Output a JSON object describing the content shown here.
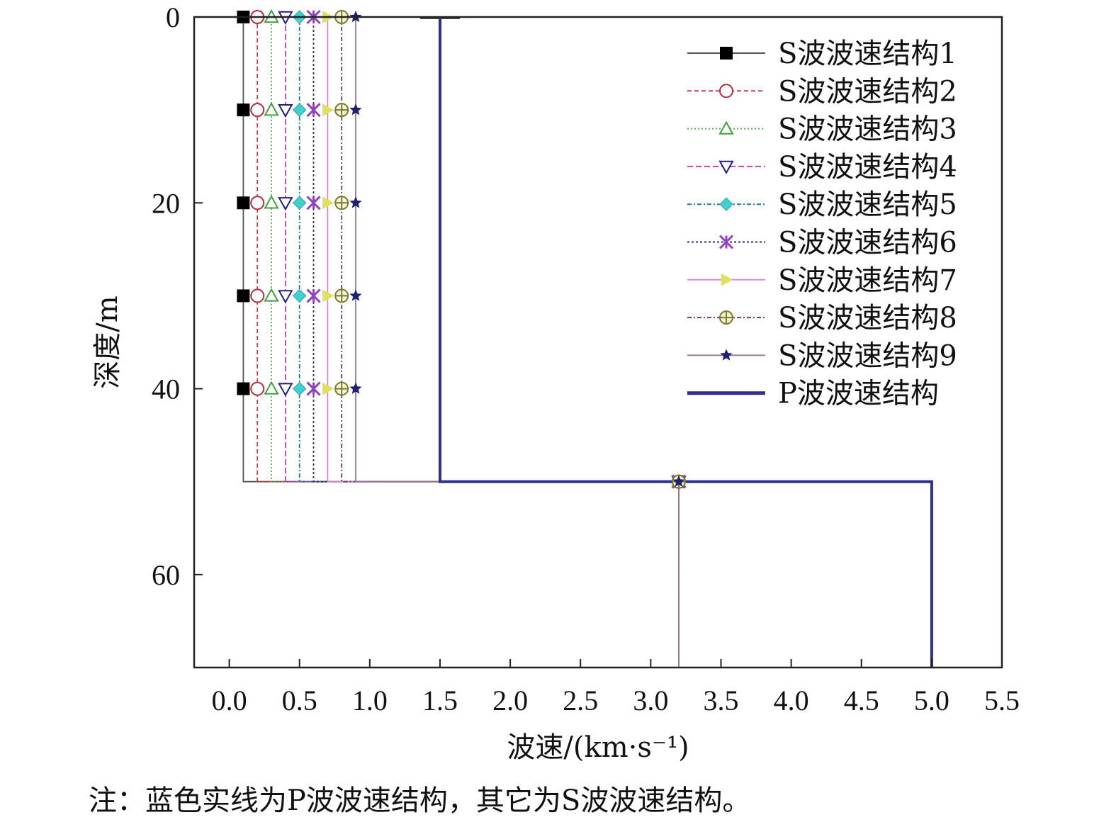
{
  "chart_data": {
    "type": "line",
    "xlabel": "波速/(km·s⁻¹)",
    "ylabel": "深度/m",
    "xlim": [
      -0.25,
      5.5
    ],
    "ylim": [
      0,
      70
    ],
    "y_inverted": true,
    "x_ticks": [
      0.0,
      0.5,
      1.0,
      1.5,
      2.0,
      2.5,
      3.0,
      3.5,
      4.0,
      4.5,
      5.0,
      5.5
    ],
    "x_tick_labels": [
      "0.0",
      "0.5",
      "1.0",
      "1.5",
      "2.0",
      "2.5",
      "3.0",
      "3.5",
      "4.0",
      "4.5",
      "5.0",
      "5.5"
    ],
    "y_ticks": [
      0,
      20,
      40,
      60
    ],
    "y_tick_labels": [
      "0",
      "20",
      "40",
      "60"
    ],
    "grid": false,
    "legend_position": "top-right",
    "marker_depths": [
      0,
      10,
      20,
      30,
      40
    ],
    "series": [
      {
        "name": "S波波速结构1",
        "color": "#555555",
        "dash": "",
        "marker": "square-filled",
        "marker_color": "#000000",
        "points": [
          [
            0.1,
            0
          ],
          [
            0.1,
            50
          ],
          [
            3.2,
            50
          ],
          [
            3.2,
            70
          ]
        ]
      },
      {
        "name": "S波波速结构2",
        "color": "#c04050",
        "dash": "6,4",
        "marker": "circle-open",
        "marker_color": "#b03040",
        "points": [
          [
            0.2,
            0
          ],
          [
            0.2,
            50
          ],
          [
            3.2,
            50
          ],
          [
            3.2,
            70
          ]
        ]
      },
      {
        "name": "S波波速结构3",
        "color": "#50b050",
        "dash": "2,3",
        "marker": "triangle-up-open",
        "marker_color": "#40a040",
        "points": [
          [
            0.3,
            0
          ],
          [
            0.3,
            50
          ],
          [
            3.2,
            50
          ],
          [
            3.2,
            70
          ]
        ]
      },
      {
        "name": "S波波速结构4",
        "color": "#c040c0",
        "dash": "8,4",
        "marker": "triangle-down-open",
        "marker_color": "#202080",
        "points": [
          [
            0.4,
            0
          ],
          [
            0.4,
            50
          ],
          [
            3.2,
            50
          ],
          [
            3.2,
            70
          ]
        ]
      },
      {
        "name": "S波波速结构5",
        "color": "#208080",
        "dash": "6,3,2,3",
        "marker": "diamond-filled",
        "marker_color": "#40d0d0",
        "points": [
          [
            0.5,
            0
          ],
          [
            0.5,
            50
          ],
          [
            3.2,
            50
          ],
          [
            3.2,
            70
          ]
        ]
      },
      {
        "name": "S波波速结构6",
        "color": "#303060",
        "dash": "3,3",
        "marker": "x-star",
        "marker_color": "#9040c0",
        "points": [
          [
            0.6,
            0
          ],
          [
            0.6,
            50
          ],
          [
            3.2,
            50
          ],
          [
            3.2,
            70
          ]
        ]
      },
      {
        "name": "S波波速结构7",
        "color": "#d090d0",
        "dash": "",
        "marker": "triangle-right-filled",
        "marker_color": "#e0e060",
        "points": [
          [
            0.7,
            0
          ],
          [
            0.7,
            50
          ],
          [
            3.2,
            50
          ],
          [
            3.2,
            70
          ]
        ]
      },
      {
        "name": "S波波速结构8",
        "color": "#604060",
        "dash": "6,3,2,3",
        "marker": "circle-cross",
        "marker_color": "#7a7a30",
        "points": [
          [
            0.8,
            0
          ],
          [
            0.8,
            50
          ],
          [
            3.2,
            50
          ],
          [
            3.2,
            70
          ]
        ]
      },
      {
        "name": "S波波速结构9",
        "color": "#9a7a8a",
        "dash": "",
        "marker": "star-filled",
        "marker_color": "#202070",
        "points": [
          [
            0.9,
            0
          ],
          [
            0.9,
            50
          ],
          [
            3.2,
            50
          ],
          [
            3.2,
            70
          ]
        ]
      },
      {
        "name": "P波波速结构",
        "color": "#2d2f8f",
        "dash": "",
        "marker": "none",
        "marker_color": "#2d2f8f",
        "points": [
          [
            1.5,
            0
          ],
          [
            1.5,
            50
          ],
          [
            5.0,
            50
          ],
          [
            5.0,
            70
          ]
        ]
      }
    ]
  },
  "note": "注：蓝色实线为P波波速结构，其它为S波波速结构。"
}
